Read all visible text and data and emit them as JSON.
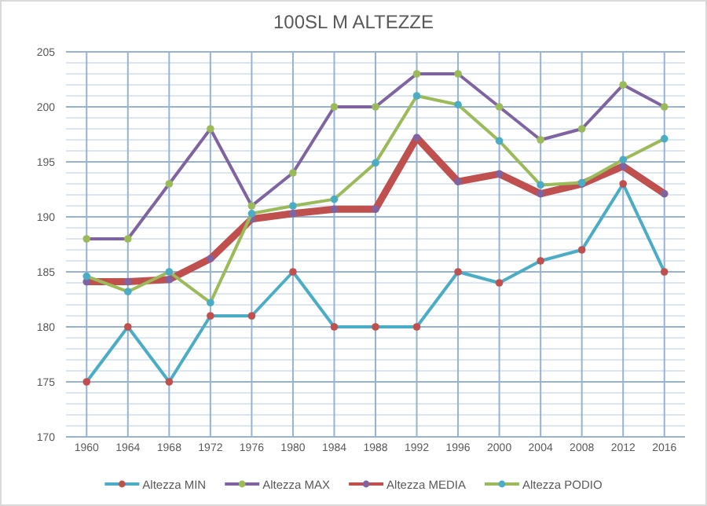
{
  "chart_data": {
    "type": "line",
    "title": "100SL M ALTEZZE",
    "categories": [
      "1960",
      "1964",
      "1968",
      "1972",
      "1976",
      "1980",
      "1984",
      "1988",
      "1992",
      "1996",
      "2000",
      "2004",
      "2008",
      "2012",
      "2016"
    ],
    "series": [
      {
        "name": "Altezza MIN",
        "color": "#4bacc6",
        "colors": [
          "#c0504d",
          "#c0504d",
          "#c0504d",
          "#c0504d",
          "#c0504d",
          "#c0504d",
          "#c0504d",
          "#c0504d",
          "#c0504d",
          "#c0504d",
          "#c0504d",
          "#c0504d",
          "#c0504d",
          "#c0504d",
          "#c0504d"
        ],
        "values": [
          175,
          180,
          175,
          181,
          181,
          185,
          180,
          180,
          180,
          185,
          184,
          186,
          187,
          193,
          185
        ]
      },
      {
        "name": "Altezza MAX",
        "color": "#8064a2",
        "colors": [
          "#9bbb59",
          "#9bbb59",
          "#9bbb59",
          "#9bbb59",
          "#9bbb59",
          "#9bbb59",
          "#9bbb59",
          "#9bbb59",
          "#9bbb59",
          "#9bbb59",
          "#9bbb59",
          "#9bbb59",
          "#9bbb59",
          "#9bbb59",
          "#9bbb59"
        ],
        "values": [
          188,
          188,
          193,
          198,
          191,
          194,
          200,
          200,
          203,
          203,
          200,
          197,
          198,
          202,
          200
        ]
      },
      {
        "name": "Altezza MEDIA",
        "color": "#c0504d",
        "colors": [
          "#8064a2",
          "#8064a2",
          "#8064a2",
          "#8064a2",
          "#8064a2",
          "#8064a2",
          "#8064a2",
          "#8064a2",
          "#8064a2",
          "#8064a2",
          "#8064a2",
          "#8064a2",
          "#8064a2",
          "#8064a2",
          "#8064a2"
        ],
        "values": [
          184.1,
          184.1,
          184.3,
          186.2,
          189.8,
          190.3,
          190.7,
          190.7,
          197.2,
          193.2,
          193.9,
          192.1,
          193.0,
          194.6,
          192.1
        ]
      },
      {
        "name": "Altezza PODIO",
        "color": "#9bbb59",
        "colors": [
          "#4bacc6",
          "#4bacc6",
          "#4bacc6",
          "#4bacc6",
          "#4bacc6",
          "#4bacc6",
          "#4bacc6",
          "#4bacc6",
          "#4bacc6",
          "#4bacc6",
          "#4bacc6",
          "#4bacc6",
          "#4bacc6",
          "#4bacc6",
          "#4bacc6"
        ],
        "values": [
          184.6,
          183.2,
          185,
          182.2,
          190.3,
          191,
          191.6,
          194.9,
          201,
          200.2,
          196.9,
          192.9,
          193.1,
          195.2,
          197.1
        ]
      }
    ],
    "ylim": [
      170,
      205
    ],
    "yticks": [
      170,
      {
        "value": 171,
        "label": null
      },
      {
        "value": 172,
        "label": null
      },
      {
        "value": 173,
        "label": null
      },
      {
        "value": 174,
        "label": null
      },
      175,
      {
        "value": 176,
        "label": null
      },
      {
        "value": 177,
        "label": null
      },
      {
        "value": 178,
        "label": null
      },
      {
        "value": 179,
        "label": null
      },
      180,
      {
        "value": 181,
        "label": null
      },
      {
        "value": 182,
        "label": null
      },
      {
        "value": 183,
        "label": null
      },
      {
        "value": 184,
        "label": null
      },
      185,
      {
        "value": 186,
        "label": null
      },
      {
        "value": 187,
        "label": null
      },
      {
        "value": 188,
        "label": null
      },
      {
        "value": 189,
        "label": null
      },
      190,
      {
        "value": 191,
        "label": null
      },
      {
        "value": 192,
        "label": null
      },
      {
        "value": 193,
        "label": null
      },
      {
        "value": 194,
        "label": null
      },
      195,
      {
        "value": 196,
        "label": null
      },
      {
        "value": 197,
        "label": null
      },
      {
        "value": 198,
        "label": null
      },
      {
        "value": 199,
        "label": null
      },
      200,
      {
        "value": 201,
        "label": null
      },
      {
        "value": 202,
        "label": null
      },
      {
        "value": 203,
        "label": null
      },
      {
        "value": 204,
        "label": null
      },
      205
    ],
    "grid": true,
    "legend": "bottom",
    "marker": "circle",
    "line_style": "solid"
  }
}
